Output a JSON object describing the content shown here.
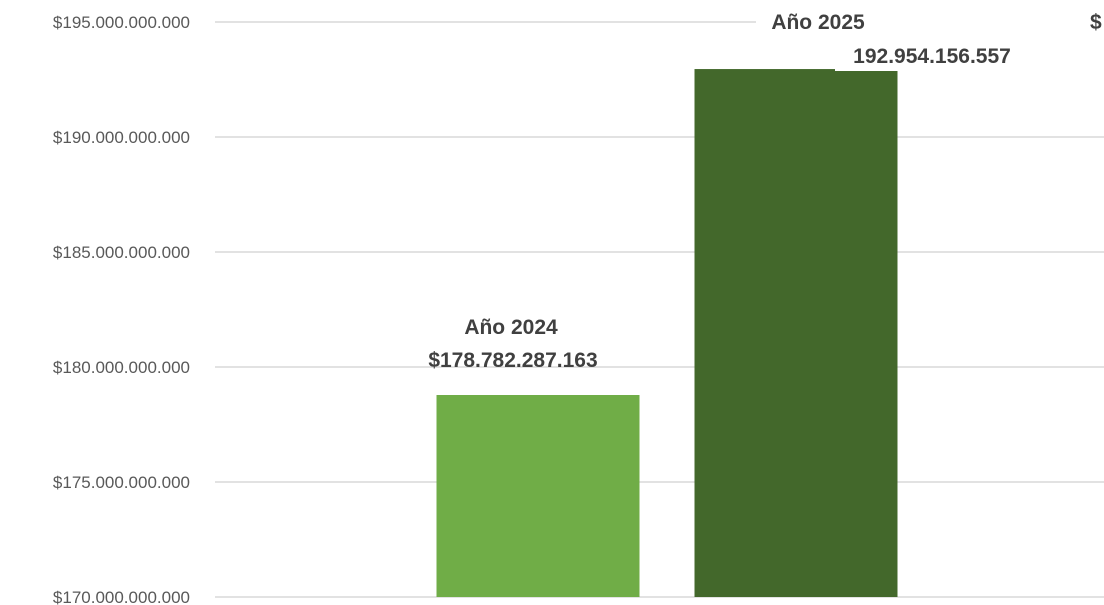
{
  "chart_data": {
    "type": "bar",
    "categories": [
      "Año 2024",
      "Año 2025"
    ],
    "values": [
      178782287163,
      192954156557
    ],
    "value_labels": [
      "$178.782.287.163",
      "192.954.156.557"
    ],
    "clipped_label_fragment": "$",
    "title": "",
    "xlabel": "",
    "ylabel": "",
    "ylim": [
      170000000000,
      195000000000
    ],
    "y_ticks": [
      {
        "value": 195000000000,
        "label": "$195.000.000.000"
      },
      {
        "value": 190000000000,
        "label": "$190.000.000.000"
      },
      {
        "value": 185000000000,
        "label": "$185.000.000.000"
      },
      {
        "value": 180000000000,
        "label": "$180.000.000.000"
      },
      {
        "value": 175000000000,
        "label": "$175.000.000.000"
      },
      {
        "value": 170000000000,
        "label": "$170.000.000.000"
      }
    ],
    "grid": true,
    "legend": "none",
    "colors": [
      "#70ad47",
      "#43682b"
    ]
  }
}
